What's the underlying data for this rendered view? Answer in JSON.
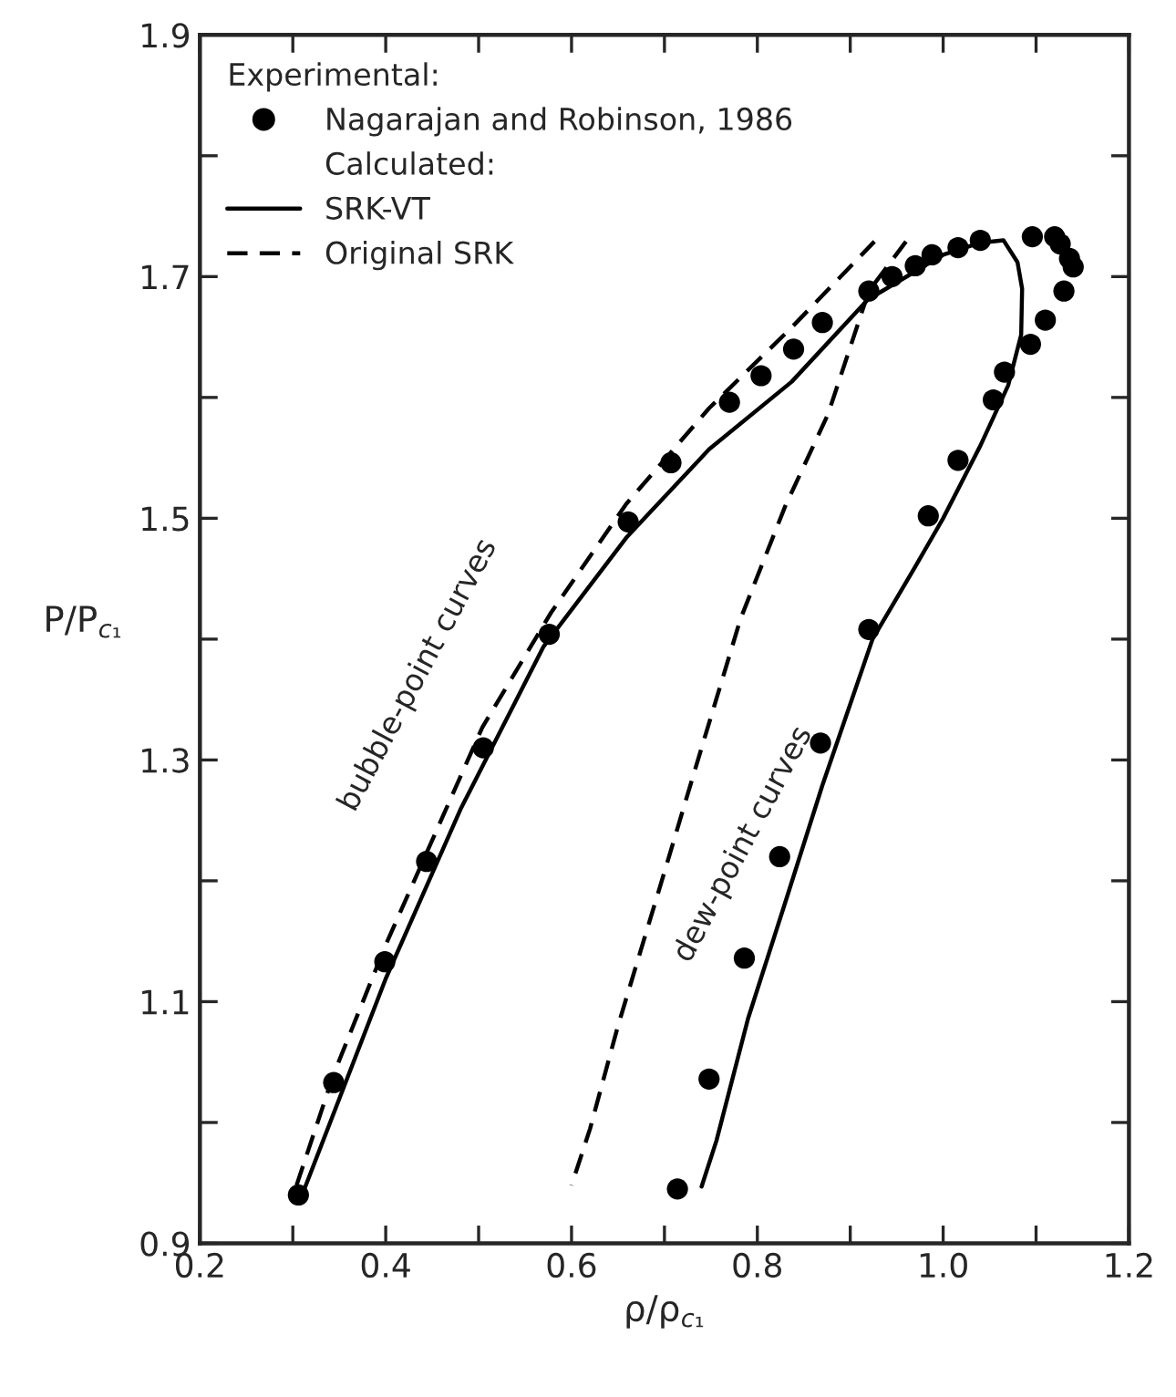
{
  "chart_data": {
    "type": "line",
    "xlabel": "ρ/ρ$_{c₁}$",
    "ylabel": "P/P$_{c₁}$",
    "xlim": [
      0.2,
      1.2
    ],
    "ylim": [
      0.9,
      1.9
    ],
    "xticks": [
      0.2,
      {
        "value": 0.3,
        "label": null
      },
      0.4,
      {
        "value": 0.5,
        "label": null
      },
      0.6,
      {
        "value": 0.7,
        "label": null
      },
      0.8,
      {
        "value": 0.9,
        "label": null
      },
      {
        "value": 1.0,
        "label": "1.0"
      },
      {
        "value": 1.1,
        "label": null
      },
      1.2
    ],
    "yticks": [
      0.9,
      {
        "value": 1.0,
        "label": null
      },
      1.1,
      {
        "value": 1.2,
        "label": null
      },
      1.3,
      {
        "value": 1.4,
        "label": null
      },
      1.5,
      {
        "value": 1.6,
        "label": null
      },
      1.7,
      {
        "value": 1.8,
        "label": null
      },
      1.9
    ],
    "grid": false,
    "legend": "top left",
    "legend_title": "Experimental:",
    "series": [
      {
        "name": "Nagarajan and Robinson, 1986",
        "type": "scatter",
        "marker": "circle",
        "color": "#000000",
        "x": [
          0.306,
          0.344,
          0.399,
          0.444,
          0.505,
          0.576,
          0.661,
          0.707,
          0.77,
          0.804,
          0.839,
          0.87,
          0.92,
          0.945,
          0.97,
          0.988,
          1.016,
          1.04,
          1.096,
          1.12,
          1.126,
          1.136,
          1.14,
          1.13,
          1.11,
          1.094,
          1.066,
          1.054,
          1.016,
          0.984,
          0.92,
          0.868,
          0.824,
          0.786,
          0.748,
          0.714
        ],
        "values": [
          0.94,
          1.033,
          1.133,
          1.216,
          1.31,
          1.404,
          1.497,
          1.546,
          1.596,
          1.618,
          1.64,
          1.662,
          1.688,
          1.7,
          1.709,
          1.718,
          1.724,
          1.73,
          1.733,
          1.733,
          1.727,
          1.715,
          1.708,
          1.688,
          1.664,
          1.644,
          1.621,
          1.598,
          1.548,
          1.502,
          1.408,
          1.314,
          1.22,
          1.136,
          1.036,
          0.945
        ]
      },
      {
        "name": "SRK-VT",
        "marker": "none",
        "line_style": "solid",
        "color": "#000000",
        "x": [
          0.311,
          0.4,
          0.481,
          0.57,
          0.659,
          0.748,
          0.837,
          0.919,
          1.0,
          1.04,
          1.065,
          1.08,
          1.085,
          1.084,
          1.07,
          1.04,
          1.0,
          0.97,
          0.924,
          0.87,
          0.83,
          0.79,
          0.756,
          0.74
        ],
        "values": [
          0.942,
          1.119,
          1.26,
          1.394,
          1.484,
          1.557,
          1.613,
          1.681,
          1.718,
          1.728,
          1.73,
          1.712,
          1.69,
          1.652,
          1.61,
          1.56,
          1.5,
          1.46,
          1.4,
          1.279,
          1.182,
          1.086,
          0.985,
          0.947
        ]
      },
      {
        "name": "Original SRK",
        "marker": "none",
        "line_style": "dashed",
        "color": "#000000",
        "x": [
          0.304,
          0.344,
          0.4,
          0.504,
          0.578,
          0.659,
          0.748,
          0.837,
          0.926,
          0.943,
          0.96,
          0.92,
          0.876,
          0.83,
          0.782,
          0.738,
          0.694,
          0.65,
          0.62,
          0.6
        ],
        "values": [
          0.948,
          1.04,
          1.147,
          1.327,
          1.422,
          1.512,
          1.591,
          1.658,
          1.729,
          null,
          1.729,
          1.688,
          1.586,
          1.51,
          1.417,
          1.305,
          1.192,
          1.08,
          0.995,
          0.948
        ]
      }
    ],
    "annotations": [
      "Calculated:",
      "bubble-point curves",
      "dew-point curves"
    ]
  }
}
